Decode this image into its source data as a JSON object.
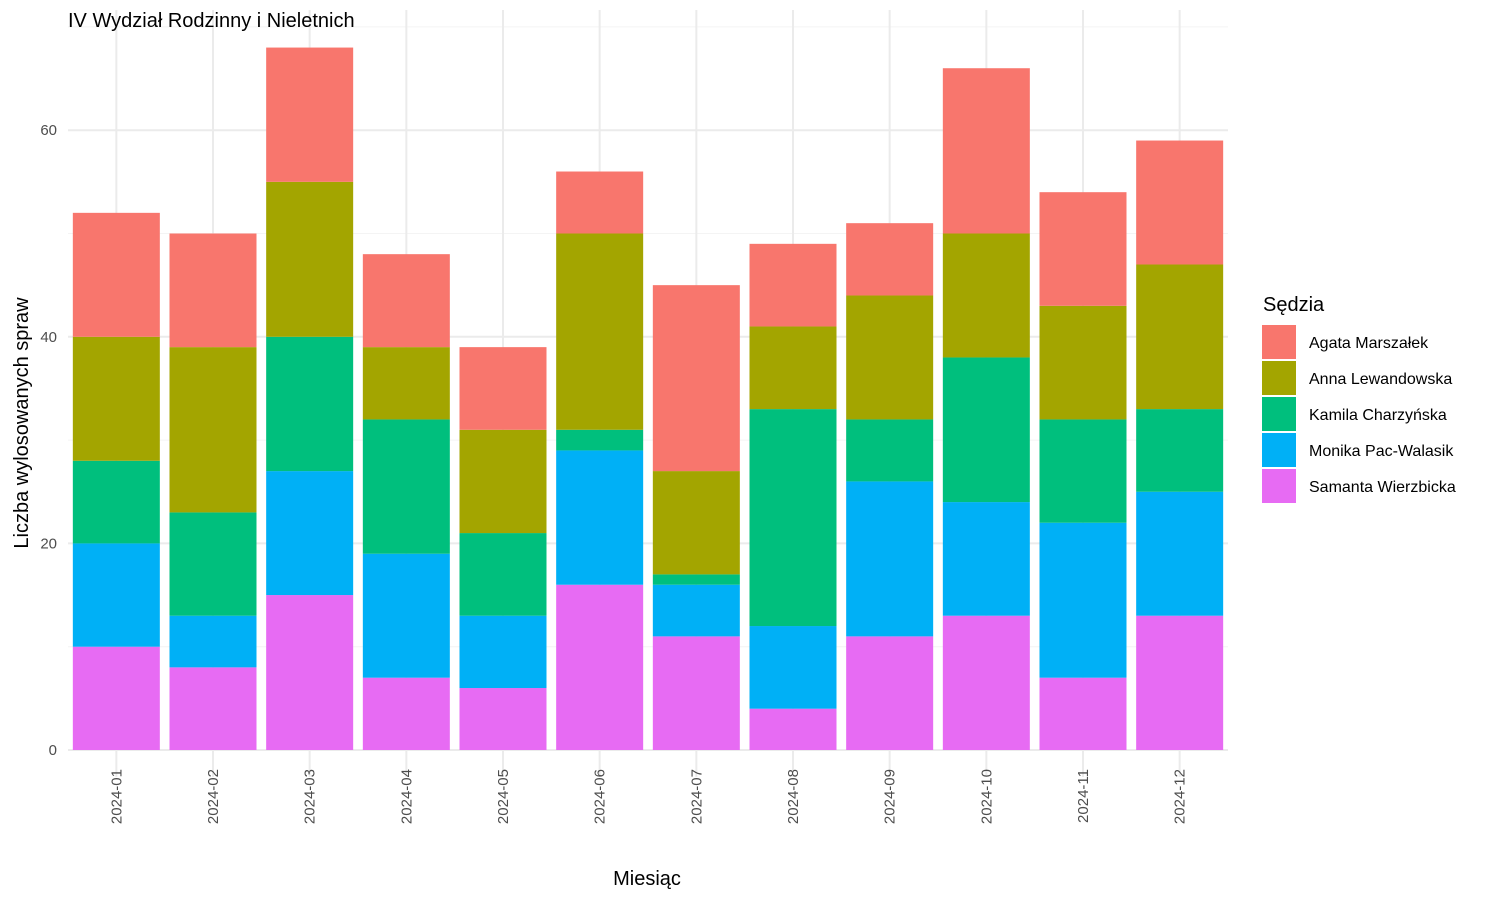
{
  "chart_data": {
    "type": "bar",
    "stacked": true,
    "title": "IV Wydział Rodzinny i Nieletnich",
    "xlabel": "Miesiąc",
    "ylabel": "Liczba wylosowanych spraw",
    "ylim": [
      0,
      70
    ],
    "yticks": [
      0,
      20,
      40,
      60
    ],
    "grid": true,
    "legend_title": "Sędzia",
    "legend_position": "right",
    "categories": [
      "2024-01",
      "2024-02",
      "2024-03",
      "2024-04",
      "2024-05",
      "2024-06",
      "2024-07",
      "2024-08",
      "2024-09",
      "2024-10",
      "2024-11",
      "2024-12"
    ],
    "series": [
      {
        "name": "Samanta Wierzbicka",
        "color": "#E76BF3",
        "values": [
          10,
          8,
          15,
          7,
          6,
          16,
          11,
          4,
          11,
          13,
          7,
          13
        ]
      },
      {
        "name": "Monika Pac-Walasik",
        "color": "#00B0F6",
        "values": [
          10,
          5,
          12,
          12,
          7,
          13,
          5,
          8,
          15,
          11,
          15,
          12
        ]
      },
      {
        "name": "Kamila Charzyńska",
        "color": "#00BF7D",
        "values": [
          8,
          10,
          13,
          13,
          8,
          2,
          1,
          21,
          6,
          14,
          10,
          8
        ]
      },
      {
        "name": "Anna Lewandowska",
        "color": "#A3A500",
        "values": [
          12,
          16,
          15,
          7,
          10,
          19,
          10,
          8,
          12,
          12,
          11,
          14
        ]
      },
      {
        "name": "Agata Marszałek",
        "color": "#F8766D",
        "values": [
          12,
          11,
          13,
          9,
          8,
          6,
          18,
          8,
          7,
          16,
          11,
          12
        ]
      }
    ],
    "legend_order": [
      "Agata Marszałek",
      "Anna Lewandowska",
      "Kamila Charzyńska",
      "Monika Pac-Walasik",
      "Samanta Wierzbicka"
    ]
  }
}
